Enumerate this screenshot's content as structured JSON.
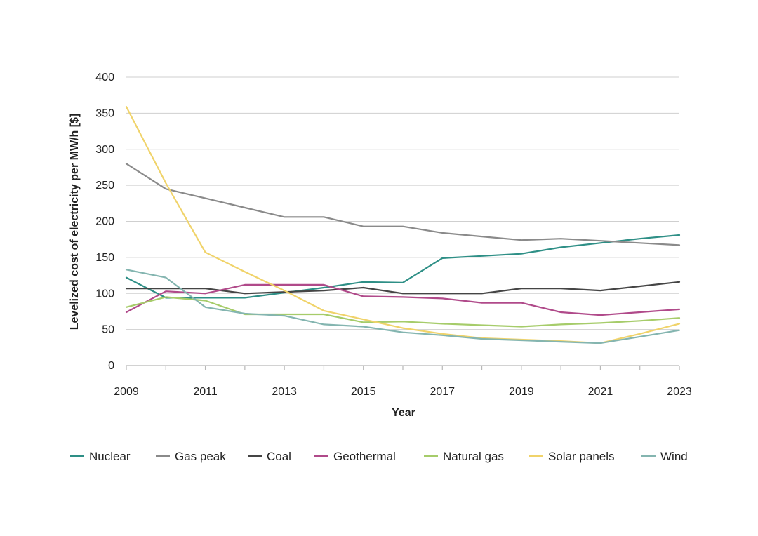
{
  "chart_data": {
    "type": "line",
    "title": "",
    "xlabel": "Year",
    "ylabel": "Levelized cost of electricity per MW/h [$]",
    "xlim": [
      2009,
      2023
    ],
    "ylim": [
      0,
      400
    ],
    "xticks": [
      "2009",
      "2011",
      "2013",
      "2015",
      "2017",
      "2019",
      "2021",
      "2023"
    ],
    "yticks": [
      "0",
      "50",
      "100",
      "150",
      "200",
      "250",
      "300",
      "350",
      "400"
    ],
    "grid": "horizontal",
    "legend_position": "bottom",
    "x": [
      2009,
      2010,
      2011,
      2012,
      2013,
      2014,
      2015,
      2016,
      2017,
      2018,
      2019,
      2020,
      2021,
      2022,
      2023
    ],
    "series": [
      {
        "name": "Nuclear",
        "color": "#2e8f86",
        "values": [
          122,
          94,
          94,
          94,
          101,
          108,
          116,
          115,
          149,
          152,
          155,
          164,
          170,
          176,
          181
        ]
      },
      {
        "name": "Gas peak",
        "color": "#8a8a8a",
        "values": [
          280,
          245,
          232,
          219,
          206,
          206,
          193,
          193,
          184,
          179,
          174,
          176,
          173,
          170,
          167
        ]
      },
      {
        "name": "Coal",
        "color": "#454545",
        "values": [
          107,
          107,
          107,
          100,
          102,
          104,
          108,
          100,
          100,
          100,
          107,
          107,
          104,
          110,
          116
        ]
      },
      {
        "name": "Geothermal",
        "color": "#b04a8a",
        "values": [
          74,
          103,
          100,
          112,
          112,
          112,
          96,
          95,
          93,
          87,
          87,
          74,
          70,
          74,
          78
        ]
      },
      {
        "name": "Natural gas",
        "color": "#a6cc6a",
        "values": [
          81,
          95,
          90,
          71,
          71,
          71,
          60,
          61,
          58,
          56,
          54,
          57,
          59,
          62,
          66
        ]
      },
      {
        "name": "Solar panels",
        "color": "#f0d36a",
        "values": [
          359,
          253,
          157,
          130,
          104,
          76,
          64,
          52,
          44,
          38,
          36,
          34,
          31,
          44,
          58
        ]
      },
      {
        "name": "Wind",
        "color": "#84b5b0",
        "values": [
          133,
          122,
          81,
          72,
          69,
          57,
          54,
          46,
          42,
          37,
          35,
          33,
          31,
          40,
          49
        ]
      }
    ]
  }
}
